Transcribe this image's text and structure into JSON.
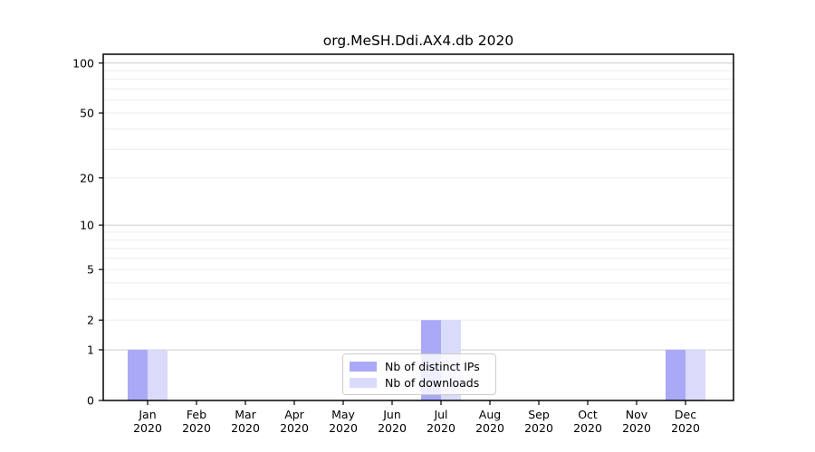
{
  "chart_data": {
    "type": "bar",
    "title": "org.MeSH.Ddi.AX4.db 2020",
    "categories": [
      "Jan",
      "Feb",
      "Mar",
      "Apr",
      "May",
      "Jun",
      "Jul",
      "Aug",
      "Sep",
      "Oct",
      "Nov",
      "Dec"
    ],
    "category_year": "2020",
    "series": [
      {
        "name": "Nb of distinct IPs",
        "color": "#A9A9F7",
        "values": [
          1,
          0,
          0,
          0,
          0,
          0,
          2,
          0,
          0,
          0,
          0,
          1
        ]
      },
      {
        "name": "Nb of downloads",
        "color": "#DADAFA",
        "values": [
          1,
          0,
          0,
          0,
          0,
          0,
          2,
          0,
          0,
          0,
          0,
          1
        ]
      }
    ],
    "xlabel": "",
    "ylabel": "",
    "y_ticks": [
      0,
      1,
      2,
      5,
      10,
      20,
      50,
      100
    ],
    "y_major_gridlines": [
      1,
      10,
      100
    ],
    "y_minor_gridlines": [
      2,
      3,
      4,
      5,
      6,
      7,
      8,
      9,
      20,
      30,
      40,
      50,
      60,
      70,
      80,
      90
    ],
    "y_scale": "log10(1+v)",
    "ylim": [
      0,
      113
    ],
    "grid": "horizontal",
    "legend_position": "lower center",
    "colors": {
      "frame": "#000000",
      "major_grid": "#cccccc",
      "minor_grid": "#ededed",
      "text": "#000000"
    }
  }
}
